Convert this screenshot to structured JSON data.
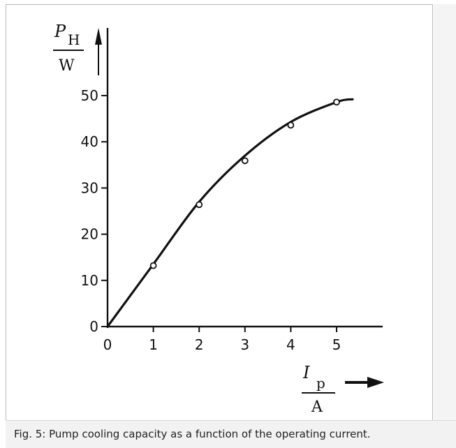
{
  "chart_data": {
    "type": "line",
    "x_ticks": [
      "0",
      "1",
      "2",
      "3",
      "4",
      "5"
    ],
    "y_ticks": [
      "0",
      "10",
      "20",
      "30",
      "40",
      "50"
    ],
    "xlim": [
      0,
      6
    ],
    "ylim": [
      0,
      55
    ],
    "xlabel": {
      "symbol": "I",
      "subscript": "p",
      "unit": "A"
    },
    "ylabel": {
      "symbol": "P",
      "subscript": "H",
      "unit": "W"
    },
    "points": [
      {
        "x": 1,
        "y": 13.2
      },
      {
        "x": 2,
        "y": 26.4
      },
      {
        "x": 3,
        "y": 35.9
      },
      {
        "x": 4,
        "y": 43.6
      },
      {
        "x": 5,
        "y": 48.6
      }
    ],
    "curve": [
      {
        "x": 0,
        "y": 0
      },
      {
        "x": 1,
        "y": 13.5
      },
      {
        "x": 2,
        "y": 27
      },
      {
        "x": 3,
        "y": 37
      },
      {
        "x": 4,
        "y": 44.3
      },
      {
        "x": 5,
        "y": 48.6
      },
      {
        "x": 5.35,
        "y": 49.2
      }
    ],
    "grid": false,
    "legend": "none"
  },
  "caption": "Fig. 5: Pump cooling capacity as a function of the operating current."
}
